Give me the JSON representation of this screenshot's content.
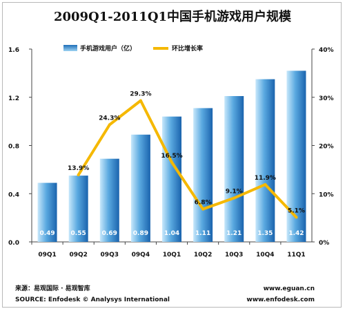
{
  "chart_data": {
    "type": "bar",
    "title": "2009Q1-2011Q1中国手机游戏用户规模",
    "categories": [
      "09Q1",
      "09Q2",
      "09Q3",
      "09Q4",
      "10Q1",
      "10Q2",
      "10Q3",
      "10Q4",
      "11Q1"
    ],
    "series": [
      {
        "name": "手机游戏用户（亿）",
        "type": "bar",
        "axis": "left",
        "values": [
          0.49,
          0.55,
          0.69,
          0.89,
          1.04,
          1.11,
          1.21,
          1.35,
          1.42
        ],
        "labels": [
          "0.49",
          "0.55",
          "0.69",
          "0.89",
          "1.04",
          "1.11",
          "1.21",
          "1.35",
          "1.42"
        ]
      },
      {
        "name": "环比增长率",
        "type": "line",
        "axis": "right",
        "values": [
          null,
          13.9,
          24.3,
          29.3,
          16.5,
          6.8,
          9.1,
          11.9,
          5.1
        ],
        "labels": [
          "",
          "13.9%",
          "24.3%",
          "29.3%",
          "16.5%",
          "6.8%",
          "9.1%",
          "11.9%",
          "5.1%"
        ]
      }
    ],
    "ylim": [
      0,
      1.6
    ],
    "y_ticks": [
      "0.0",
      "0.4",
      "0.8",
      "1.2",
      "1.6"
    ],
    "y2lim": [
      0,
      40
    ],
    "y2_ticks": [
      "0%",
      "10%",
      "20%",
      "30%",
      "40%"
    ],
    "legend": "top-center",
    "grid": false,
    "colors": {
      "bar_light": "#9cd2f2",
      "bar_dark": "#1f6fb8",
      "line": "#f5b800"
    }
  },
  "footer": {
    "source_cn": "来源：易观国际 · 易观智库",
    "source_en": "SOURCE: Enfodesk © Analysys International",
    "site1": "www.eguan.cn",
    "site2": "www.enfodesk.com"
  }
}
